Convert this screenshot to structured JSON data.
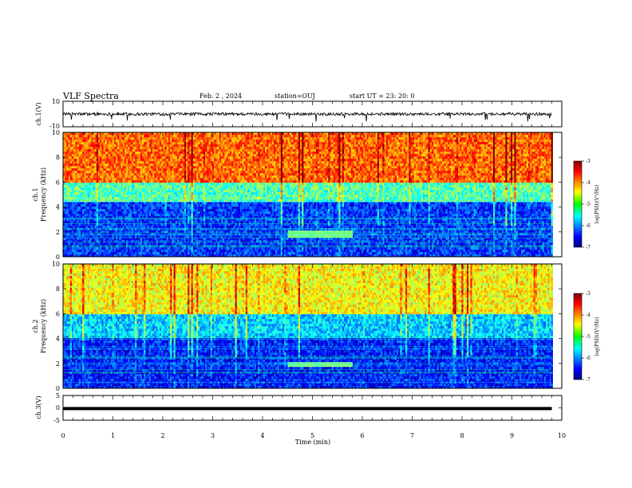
{
  "header": {
    "title": "VLF Spectra",
    "date": "Feb. 2 , 2024",
    "station": "station=OUJ",
    "start": "start UT = 23: 20: 0"
  },
  "chart_data": [
    {
      "type": "line",
      "id": "ch1-waveform",
      "ylabel": "ch.1(V)",
      "ylim": [
        -10,
        10
      ],
      "yticks": [
        "10",
        "-10"
      ],
      "xlim": [
        0,
        10
      ],
      "baseline": 0,
      "amplitude_range": [
        -2,
        2
      ],
      "spikes_down_to": -6
    },
    {
      "type": "heatmap",
      "id": "ch1-spectrogram",
      "ylabel_channel": "ch.1",
      "ylabel": "Frequency (kHz)",
      "ylim": [
        0,
        10
      ],
      "yticks": [
        "0",
        "2",
        "4",
        "6",
        "8",
        "10"
      ],
      "xlim": [
        0,
        10
      ],
      "data_end_min": 9.8,
      "colorbar": {
        "label": "log(PSD)(V²/Hz)",
        "range": [
          -7,
          -3
        ],
        "ticks": [
          "-3",
          "-4",
          "-5",
          "-6",
          "-7"
        ]
      },
      "bands": [
        {
          "f_from": 0,
          "f_to": 4.5,
          "log_psd": -6.3
        },
        {
          "f_from": 4.5,
          "f_to": 6,
          "log_psd": -5.2
        },
        {
          "f_from": 6,
          "f_to": 10,
          "log_psd": -3.9
        }
      ],
      "feature": {
        "t_from": 4.5,
        "t_to": 5.8,
        "f": 1.8,
        "log_psd": -5.0
      }
    },
    {
      "type": "heatmap",
      "id": "ch2-spectrogram",
      "ylabel_channel": "ch.2",
      "ylabel": "Frequency (kHz)",
      "ylim": [
        0,
        10
      ],
      "yticks": [
        "0",
        "2",
        "4",
        "6",
        "8",
        "10"
      ],
      "xlim": [
        0,
        10
      ],
      "data_end_min": 9.8,
      "colorbar": {
        "label": "log(PSD)(V²/Hz)",
        "range": [
          -7,
          -3
        ],
        "ticks": [
          "-3",
          "-4",
          "-5",
          "-6",
          "-7"
        ]
      },
      "bands": [
        {
          "f_from": 0,
          "f_to": 4,
          "log_psd": -6.4
        },
        {
          "f_from": 4,
          "f_to": 6,
          "log_psd": -5.7
        },
        {
          "f_from": 6,
          "f_to": 10,
          "log_psd": -4.5
        }
      ],
      "feature": {
        "t_from": 4.5,
        "t_to": 5.8,
        "f": 1.9,
        "log_psd": -5.0
      }
    },
    {
      "type": "line",
      "id": "ch3-waveform",
      "ylabel": "ch.3(V)",
      "ylim": [
        -5,
        5
      ],
      "yticks": [
        "5",
        "0",
        "-5"
      ],
      "xlim": [
        0,
        10
      ],
      "baseline": -0.3,
      "xlabel": "Time (min)",
      "xticks": [
        "0",
        "1",
        "2",
        "3",
        "4",
        "5",
        "6",
        "7",
        "8",
        "9",
        "10"
      ]
    }
  ]
}
